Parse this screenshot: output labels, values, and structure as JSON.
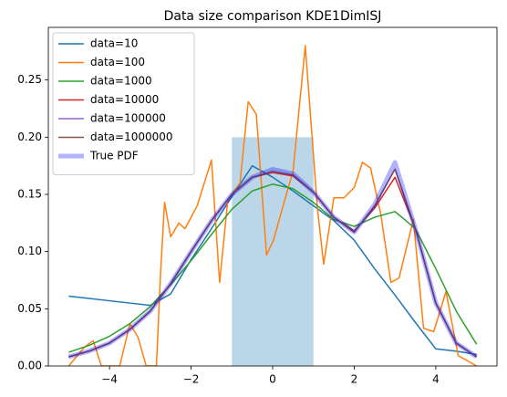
{
  "chart_data": {
    "type": "line",
    "title": "Data size comparison KDE1DimISJ",
    "xlim": [
      -5.5,
      5.5
    ],
    "ylim": [
      0,
      0.296
    ],
    "xticks": [
      {
        "value": -4,
        "label": "−4"
      },
      {
        "value": -2,
        "label": "−2"
      },
      0,
      2,
      4
    ],
    "yticks": [
      {
        "value": 0,
        "label": "0.00"
      },
      {
        "value": 0.05,
        "label": "0.05"
      },
      {
        "value": 0.1,
        "label": "0.10"
      },
      {
        "value": 0.15,
        "label": "0.15"
      },
      {
        "value": 0.2,
        "label": "0.20"
      },
      {
        "value": 0.25,
        "label": "0.25"
      }
    ],
    "legend": "upper left",
    "span": {
      "x0": -1,
      "x1": 1,
      "y": 0.2,
      "color": "#1f77b4",
      "alpha": 0.3
    },
    "x": [
      -5,
      -4.5,
      -4,
      -3.5,
      -3,
      -2.5,
      -2,
      -1.5,
      -1,
      -0.5,
      0,
      0.5,
      1,
      1.5,
      2,
      2.5,
      3,
      3.5,
      4,
      4.5,
      5
    ],
    "series": [
      {
        "name": "data=10",
        "color": "#1f77b4",
        "values": [
          0.061,
          0.059,
          0.057,
          0.055,
          0.053,
          0.063,
          0.093,
          0.12,
          0.148,
          0.175,
          0.165,
          0.153,
          0.14,
          0.127,
          0.11,
          0.085,
          0.062,
          0.038,
          0.015,
          0.013,
          0.01
        ]
      },
      {
        "name": "data=100",
        "color": "#ff7f0e",
        "x": [
          -5,
          -4.6,
          -4.4,
          -4.2,
          -3.75,
          -3.5,
          -3.3,
          -3.1,
          -2.85,
          -2.75,
          -2.65,
          -2.5,
          -2.3,
          -2.15,
          -1.85,
          -1.5,
          -1.3,
          -1.1,
          -0.8,
          -0.6,
          -0.4,
          -0.15,
          0.02,
          0.4,
          0.5,
          0.8,
          1.1,
          1.25,
          1.5,
          1.75,
          2.0,
          2.2,
          2.4,
          2.65,
          2.9,
          3.1,
          3.45,
          3.7,
          3.95,
          4.25,
          4.55,
          5
        ],
        "values": [
          0,
          0.017,
          0.022,
          0,
          0,
          0.037,
          0.025,
          0,
          0,
          0.08,
          0.143,
          0.113,
          0.125,
          0.12,
          0.14,
          0.18,
          0.073,
          0.145,
          0.16,
          0.231,
          0.22,
          0.097,
          0.11,
          0.158,
          0.17,
          0.28,
          0.137,
          0.089,
          0.147,
          0.147,
          0.156,
          0.178,
          0.173,
          0.133,
          0.073,
          0.077,
          0.128,
          0.033,
          0.03,
          0.065,
          0.009,
          0
        ]
      },
      {
        "name": "data=1000",
        "color": "#2ca02c",
        "values": [
          0.012,
          0.018,
          0.026,
          0.037,
          0.052,
          0.071,
          0.092,
          0.115,
          0.137,
          0.153,
          0.159,
          0.155,
          0.143,
          0.128,
          0.122,
          0.13,
          0.135,
          0.12,
          0.085,
          0.048,
          0.019
        ]
      },
      {
        "name": "data=10000",
        "color": "#d62728",
        "values": [
          0.008,
          0.013,
          0.02,
          0.032,
          0.048,
          0.072,
          0.1,
          0.127,
          0.15,
          0.165,
          0.169,
          0.166,
          0.152,
          0.13,
          0.118,
          0.138,
          0.165,
          0.12,
          0.055,
          0.02,
          0.008
        ]
      },
      {
        "name": "data=100000",
        "color": "#9467bd",
        "values": [
          0.008,
          0.013,
          0.02,
          0.032,
          0.048,
          0.072,
          0.1,
          0.127,
          0.15,
          0.165,
          0.17,
          0.167,
          0.152,
          0.13,
          0.117,
          0.14,
          0.172,
          0.12,
          0.055,
          0.02,
          0.008
        ]
      },
      {
        "name": "data=1000000",
        "color": "#8c564b",
        "values": [
          0.008,
          0.013,
          0.02,
          0.032,
          0.048,
          0.072,
          0.1,
          0.127,
          0.15,
          0.165,
          0.17,
          0.167,
          0.152,
          0.13,
          0.117,
          0.14,
          0.172,
          0.12,
          0.055,
          0.02,
          0.008
        ]
      },
      {
        "name": "True PDF",
        "color": "#0000ff",
        "alpha": 0.3,
        "linewidth": 5,
        "values": [
          0.008,
          0.013,
          0.02,
          0.032,
          0.048,
          0.072,
          0.1,
          0.127,
          0.15,
          0.165,
          0.172,
          0.168,
          0.152,
          0.13,
          0.117,
          0.141,
          0.178,
          0.12,
          0.055,
          0.02,
          0.008
        ]
      }
    ]
  }
}
